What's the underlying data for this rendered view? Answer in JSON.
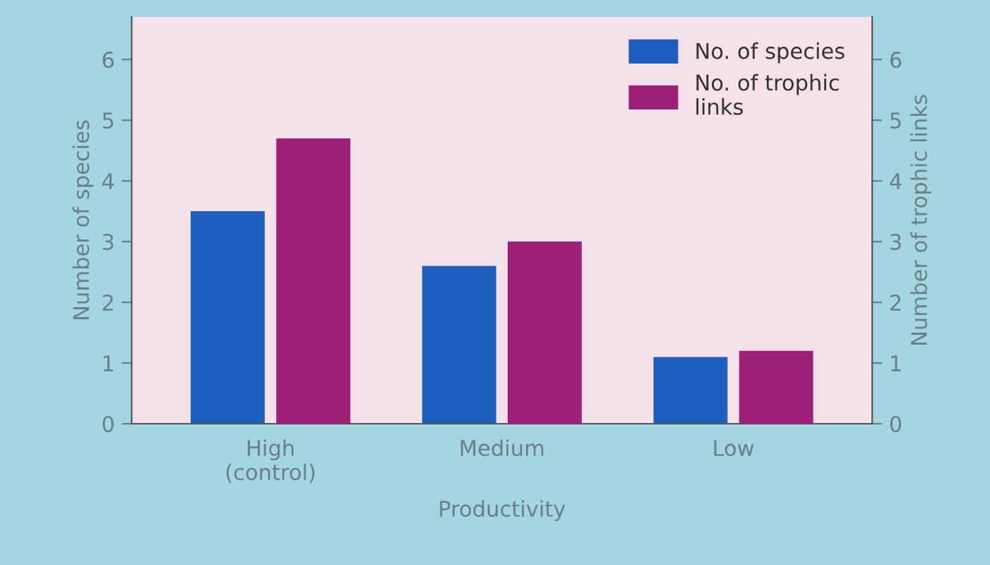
{
  "chart_data": {
    "type": "bar",
    "xlabel": "Productivity",
    "ylabel": "Number of species",
    "y2label": "Number of trophic links",
    "categories": [
      "High\n(control)",
      "Medium",
      "Low"
    ],
    "series": [
      {
        "name": "No. of species",
        "color": "#1f5fbf",
        "values": [
          3.5,
          2.6,
          1.1
        ]
      },
      {
        "name": "No. of trophic\nlinks",
        "color": "#9c1f78",
        "values": [
          4.7,
          3.0,
          1.2
        ],
        "axis": "y2"
      }
    ],
    "ylim": [
      0,
      6.7
    ],
    "yticks": [
      0,
      1,
      2,
      3,
      4,
      5,
      6
    ],
    "y2lim": [
      0,
      6.7
    ],
    "y2ticks": [
      0,
      1,
      2,
      3,
      4,
      5,
      6
    ],
    "grid": false,
    "legend": "top right"
  }
}
